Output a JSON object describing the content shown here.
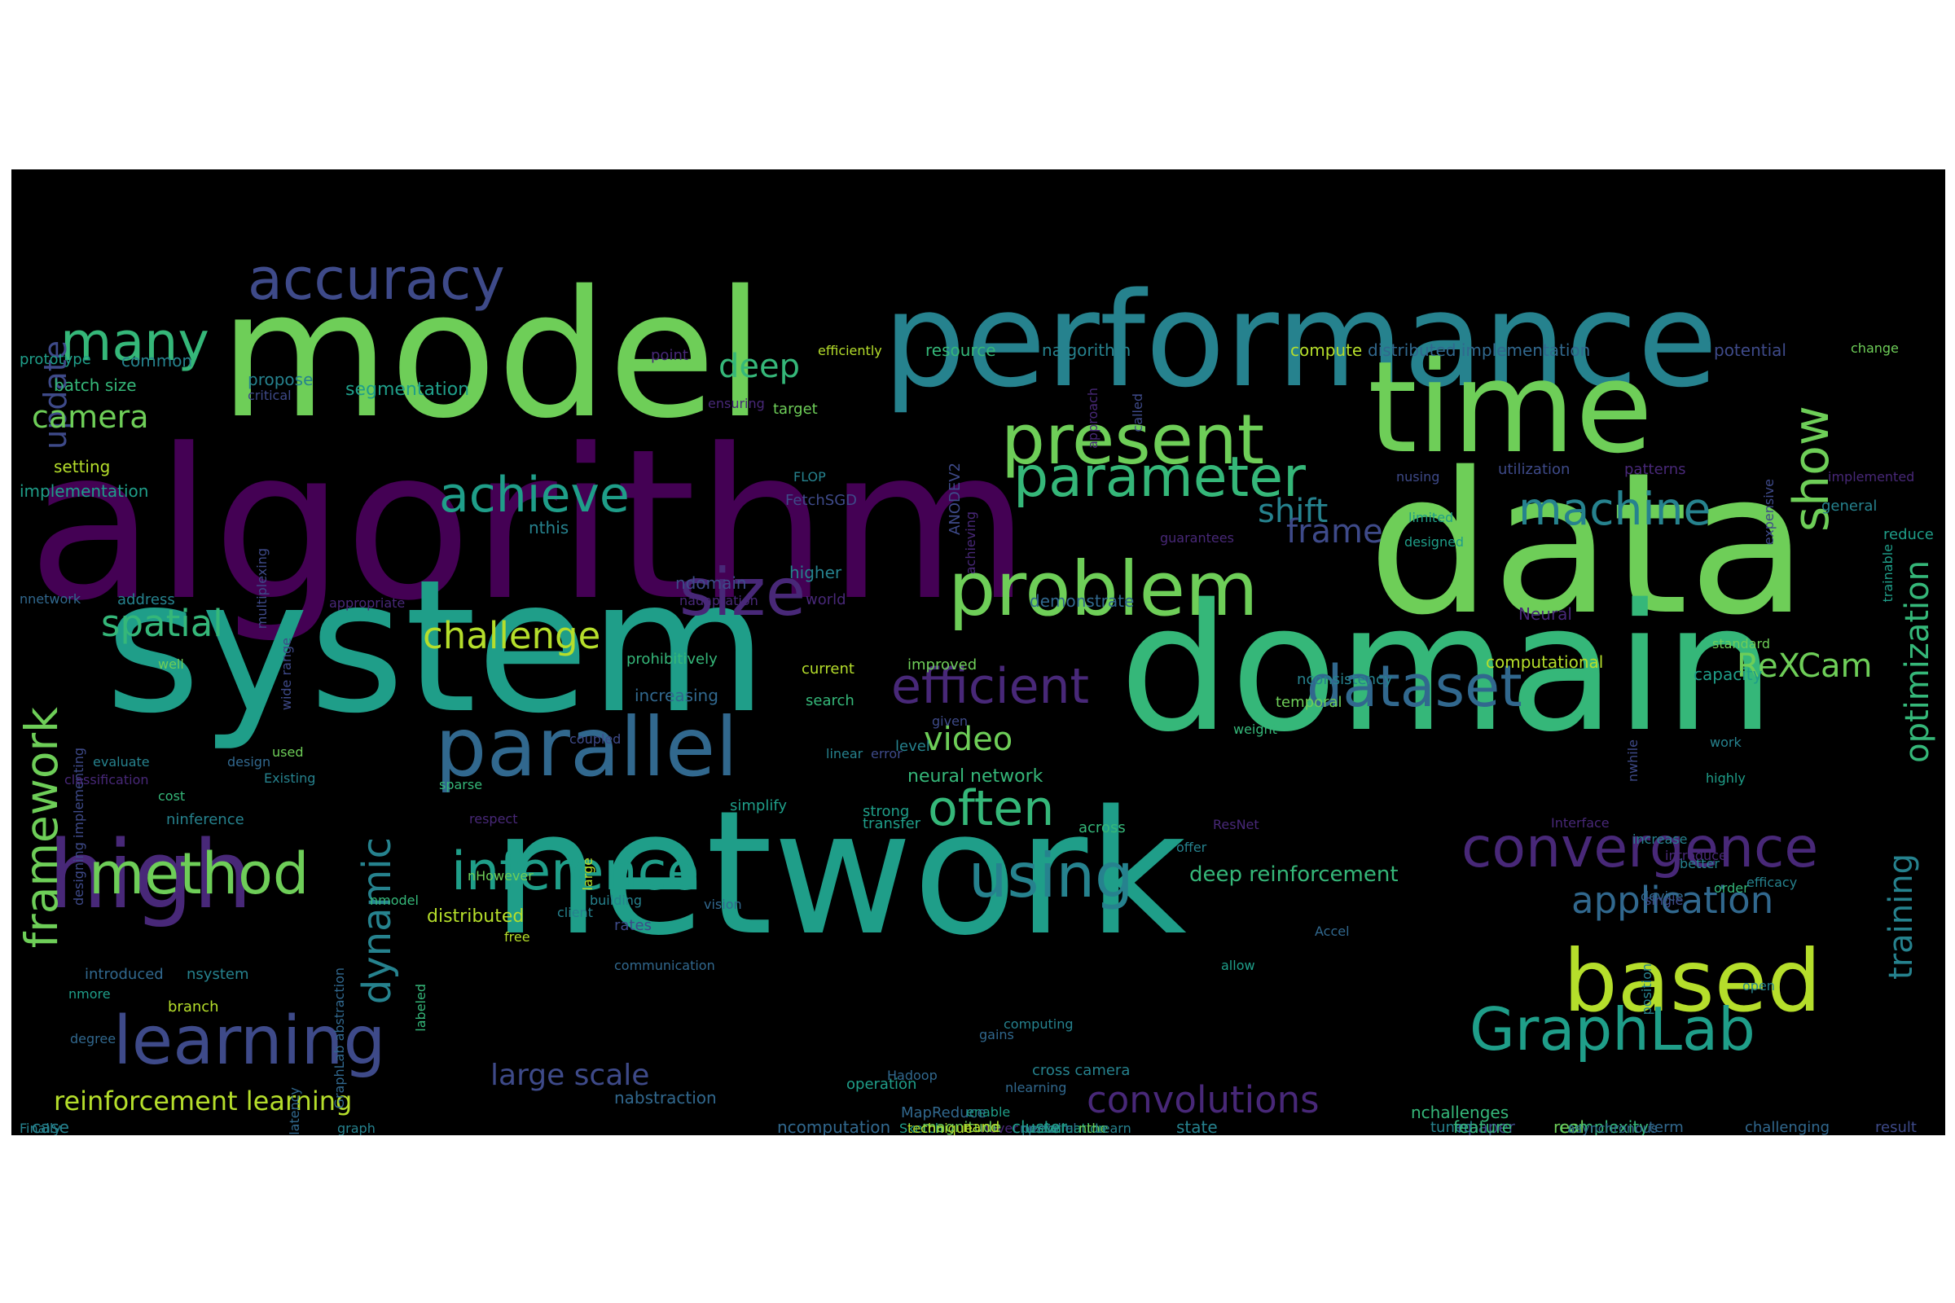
{
  "palette": [
    "#440154",
    "#482878",
    "#3e4a89",
    "#31688e",
    "#26828e",
    "#1f9e89",
    "#35b779",
    "#6ece58",
    "#b5de2b"
  ],
  "words": [
    {
      "text": "algorithm",
      "color": "#440154"
    },
    {
      "text": "model",
      "color": "#6ece58"
    },
    {
      "text": "system",
      "color": "#1f9e89"
    },
    {
      "text": "data",
      "color": "#6ece58"
    },
    {
      "text": "domain",
      "color": "#35b779"
    },
    {
      "text": "network",
      "color": "#1f9e89"
    },
    {
      "text": "performance",
      "color": "#26828e"
    },
    {
      "text": "time",
      "color": "#6ece58"
    },
    {
      "text": "parallel",
      "color": "#31688e"
    },
    {
      "text": "high",
      "color": "#482878"
    },
    {
      "text": "learning",
      "color": "#3e4a89"
    },
    {
      "text": "based",
      "color": "#b5de2b"
    },
    {
      "text": "problem",
      "color": "#6ece58"
    },
    {
      "text": "present",
      "color": "#6ece58"
    },
    {
      "text": "accuracy",
      "color": "#3e4a89"
    },
    {
      "text": "size",
      "color": "#482878"
    },
    {
      "text": "parameter",
      "color": "#35b779"
    },
    {
      "text": "GraphLab",
      "color": "#1f9e89"
    },
    {
      "text": "dataset",
      "color": "#31688e"
    },
    {
      "text": "using",
      "color": "#26828e"
    },
    {
      "text": "inference",
      "color": "#1f9e89"
    },
    {
      "text": "convergence",
      "color": "#482878"
    },
    {
      "text": "efficient",
      "color": "#482878"
    },
    {
      "text": "method",
      "color": "#6ece58"
    },
    {
      "text": "machine",
      "color": "#26828e"
    },
    {
      "text": "many",
      "color": "#35b779"
    },
    {
      "text": "achieve",
      "color": "#1f9e89"
    },
    {
      "text": "often",
      "color": "#35b779"
    },
    {
      "text": "application",
      "color": "#31688e"
    },
    {
      "text": "show",
      "color": "#6ece58"
    },
    {
      "text": "framework",
      "color": "#6ece58"
    },
    {
      "text": "dynamic",
      "color": "#26828e"
    },
    {
      "text": "convolutions",
      "color": "#482878"
    },
    {
      "text": "challenge",
      "color": "#b5de2b"
    },
    {
      "text": "spatial",
      "color": "#35b779"
    },
    {
      "text": "optimization",
      "color": "#35b779"
    },
    {
      "text": "training",
      "color": "#26828e"
    },
    {
      "text": "ReXCam",
      "color": "#6ece58"
    },
    {
      "text": "update",
      "color": "#3e4a89"
    },
    {
      "text": "camera",
      "color": "#6ece58"
    },
    {
      "text": "deep",
      "color": "#35b779"
    },
    {
      "text": "shift",
      "color": "#26828e"
    },
    {
      "text": "frame",
      "color": "#3e4a89"
    },
    {
      "text": "video",
      "color": "#6ece58"
    },
    {
      "text": "large scale",
      "color": "#3e4a89"
    },
    {
      "text": "reinforcement learning",
      "color": "#b5de2b"
    },
    {
      "text": "deep reinforcement",
      "color": "#35b779"
    },
    {
      "text": "distributed",
      "color": "#b5de2b"
    },
    {
      "text": "neural network",
      "color": "#35b779"
    },
    {
      "text": "batch size",
      "color": "#35b779"
    },
    {
      "text": "segmentation",
      "color": "#1f9e89"
    },
    {
      "text": "setting",
      "color": "#b5de2b"
    },
    {
      "text": "implementation",
      "color": "#1f9e89"
    },
    {
      "text": "common",
      "color": "#26828e"
    },
    {
      "text": "prototype",
      "color": "#1f9e89"
    },
    {
      "text": "propose",
      "color": "#26828e"
    },
    {
      "text": "critical",
      "color": "#3e4a89"
    },
    {
      "text": "point",
      "color": "#482878"
    },
    {
      "text": "efficiently",
      "color": "#b5de2b"
    },
    {
      "text": "resource",
      "color": "#35b779"
    },
    {
      "text": "nalgorithm",
      "color": "#26828e"
    },
    {
      "text": "compute",
      "color": "#b5de2b"
    },
    {
      "text": "distributed implementation",
      "color": "#31688e"
    },
    {
      "text": "potential",
      "color": "#3e4a89"
    },
    {
      "text": "change",
      "color": "#6ece58"
    },
    {
      "text": "target",
      "color": "#6ece58"
    },
    {
      "text": "ensuring",
      "color": "#482878"
    },
    {
      "text": "approach",
      "color": "#482878"
    },
    {
      "text": "called",
      "color": "#3e4a89"
    },
    {
      "text": "FLOP",
      "color": "#26828e"
    },
    {
      "text": "FetchSGD",
      "color": "#3e4a89"
    },
    {
      "text": "ANODEV2",
      "color": "#3e4a89"
    },
    {
      "text": "achieving",
      "color": "#482878"
    },
    {
      "text": "nusing",
      "color": "#3e4a89"
    },
    {
      "text": "utilization",
      "color": "#3e4a89"
    },
    {
      "text": "patterns",
      "color": "#482878"
    },
    {
      "text": "implemented",
      "color": "#482878"
    },
    {
      "text": "expensive",
      "color": "#3e4a89"
    },
    {
      "text": "general",
      "color": "#26828e"
    },
    {
      "text": "limited",
      "color": "#1f9e89"
    },
    {
      "text": "designed",
      "color": "#1f9e89"
    },
    {
      "text": "guarantees",
      "color": "#482878"
    },
    {
      "text": "reduce",
      "color": "#1f9e89"
    },
    {
      "text": "trainable",
      "color": "#1f9e89"
    },
    {
      "text": "higher",
      "color": "#26828e"
    },
    {
      "text": "multiplexing",
      "color": "#3e4a89"
    },
    {
      "text": "nthis",
      "color": "#26828e"
    },
    {
      "text": "ndomain",
      "color": "#3e4a89"
    },
    {
      "text": "nadaptation",
      "color": "#482878"
    },
    {
      "text": "world",
      "color": "#482878"
    },
    {
      "text": "appropriate",
      "color": "#482878"
    },
    {
      "text": "demonstrate",
      "color": "#31688e"
    },
    {
      "text": "Neural",
      "color": "#482878"
    },
    {
      "text": "standard",
      "color": "#6ece58"
    },
    {
      "text": "nnetwork",
      "color": "#31688e"
    },
    {
      "text": "address",
      "color": "#26828e"
    },
    {
      "text": "wide range",
      "color": "#3e4a89"
    },
    {
      "text": "well",
      "color": "#6ece58"
    },
    {
      "text": "prohibitively",
      "color": "#35b779"
    },
    {
      "text": "current",
      "color": "#b5de2b"
    },
    {
      "text": "improved",
      "color": "#6ece58"
    },
    {
      "text": "computational",
      "color": "#b5de2b"
    },
    {
      "text": "nconsistency",
      "color": "#26828e"
    },
    {
      "text": "capacity",
      "color": "#1f9e89"
    },
    {
      "text": "increasing",
      "color": "#31688e"
    },
    {
      "text": "search",
      "color": "#35b779"
    },
    {
      "text": "temporal",
      "color": "#6ece58"
    },
    {
      "text": "given",
      "color": "#3e4a89"
    },
    {
      "text": "weight",
      "color": "#35b779"
    },
    {
      "text": "coupled",
      "color": "#3e4a89"
    },
    {
      "text": "linear",
      "color": "#26828e"
    },
    {
      "text": "error",
      "color": "#3e4a89"
    },
    {
      "text": "level",
      "color": "#26828e"
    },
    {
      "text": "nwhile",
      "color": "#3e4a89"
    },
    {
      "text": "work",
      "color": "#26828e"
    },
    {
      "text": "highly",
      "color": "#1f9e89"
    },
    {
      "text": "evaluate",
      "color": "#26828e"
    },
    {
      "text": "design",
      "color": "#31688e"
    },
    {
      "text": "used",
      "color": "#6ece58"
    },
    {
      "text": "designing implementing",
      "color": "#3e4a89"
    },
    {
      "text": "classification",
      "color": "#482878"
    },
    {
      "text": "Existing",
      "color": "#26828e"
    },
    {
      "text": "cost",
      "color": "#35b779"
    },
    {
      "text": "sparse",
      "color": "#35b779"
    },
    {
      "text": "simplify",
      "color": "#1f9e89"
    },
    {
      "text": "strong",
      "color": "#1f9e89"
    },
    {
      "text": "ninference",
      "color": "#26828e"
    },
    {
      "text": "respect",
      "color": "#482878"
    },
    {
      "text": "transfer",
      "color": "#1f9e89"
    },
    {
      "text": "across",
      "color": "#35b779"
    },
    {
      "text": "ResNet",
      "color": "#482878"
    },
    {
      "text": "offer",
      "color": "#26828e"
    },
    {
      "text": "Interface",
      "color": "#482878"
    },
    {
      "text": "increase",
      "color": "#26828e"
    },
    {
      "text": "better",
      "color": "#26828e"
    },
    {
      "text": "introduce",
      "color": "#482878"
    },
    {
      "text": "order",
      "color": "#35b779"
    },
    {
      "text": "efficacy",
      "color": "#26828e"
    },
    {
      "text": "nHowever",
      "color": "#6ece58"
    },
    {
      "text": "large",
      "color": "#b5de2b"
    },
    {
      "text": "building",
      "color": "#26828e"
    },
    {
      "text": "vision",
      "color": "#31688e"
    },
    {
      "text": "client",
      "color": "#26828e"
    },
    {
      "text": "device",
      "color": "#31688e"
    },
    {
      "text": "rates",
      "color": "#3e4a89"
    },
    {
      "text": "nmodel",
      "color": "#35b779"
    },
    {
      "text": "free",
      "color": "#b5de2b"
    },
    {
      "text": "Accel",
      "color": "#31688e"
    },
    {
      "text": "communication",
      "color": "#31688e"
    },
    {
      "text": "single",
      "color": "#3e4a89"
    },
    {
      "text": "allow",
      "color": "#1f9e89"
    },
    {
      "text": "introduced",
      "color": "#31688e"
    },
    {
      "text": "nsystem",
      "color": "#26828e"
    },
    {
      "text": "nmore",
      "color": "#1f9e89"
    },
    {
      "text": "GraphLab abstraction",
      "color": "#31688e"
    },
    {
      "text": "labeled",
      "color": "#35b779"
    },
    {
      "text": "branch",
      "color": "#b5de2b"
    },
    {
      "text": "position",
      "color": "#26828e"
    },
    {
      "text": "open",
      "color": "#26828e"
    },
    {
      "text": "degree",
      "color": "#31688e"
    },
    {
      "text": "computing",
      "color": "#26828e"
    },
    {
      "text": "gains",
      "color": "#31688e"
    },
    {
      "text": "cross camera",
      "color": "#26828e"
    },
    {
      "text": "Hadoop",
      "color": "#31688e"
    },
    {
      "text": "nlearning",
      "color": "#31688e"
    },
    {
      "text": "operation",
      "color": "#1f9e89"
    },
    {
      "text": "nabstraction",
      "color": "#31688e"
    },
    {
      "text": "MapReduce",
      "color": "#31688e"
    },
    {
      "text": "enable",
      "color": "#1f9e89"
    },
    {
      "text": "nchallenges",
      "color": "#35b779"
    },
    {
      "text": "complexity",
      "color": "#35b779"
    },
    {
      "text": "real",
      "color": "#6ece58"
    },
    {
      "text": "Sketch",
      "color": "#1f9e89"
    },
    {
      "text": "Finally",
      "color": "#26828e"
    },
    {
      "text": "nover",
      "color": "#482878"
    },
    {
      "text": "nparallel",
      "color": "#31688e"
    },
    {
      "text": "npaper",
      "color": "#3e4a89"
    },
    {
      "text": "tuned",
      "color": "#26828e"
    },
    {
      "text": "latency",
      "color": "#31688e"
    },
    {
      "text": "graph",
      "color": "#26828e"
    },
    {
      "text": "evaluation",
      "color": "#1f9e89"
    },
    {
      "text": "perform",
      "color": "#26828e"
    },
    {
      "text": "nthe",
      "color": "#6ece58"
    },
    {
      "text": "state",
      "color": "#26828e"
    },
    {
      "text": "asynchronous",
      "color": "#31688e"
    },
    {
      "text": "Learn",
      "color": "#26828e"
    },
    {
      "text": "case",
      "color": "#26828e"
    },
    {
      "text": "ncomputation",
      "color": "#31688e"
    },
    {
      "text": "magnitude",
      "color": "#6ece58"
    },
    {
      "text": "cluster",
      "color": "#1f9e89"
    },
    {
      "text": "technique",
      "color": "#b5de2b"
    },
    {
      "text": "nand",
      "color": "#b5de2b"
    },
    {
      "text": "feature",
      "color": "#35b779"
    },
    {
      "text": "term",
      "color": "#31688e"
    },
    {
      "text": "challenging",
      "color": "#31688e"
    },
    {
      "text": "result",
      "color": "#3e4a89"
    },
    {
      "text": "formulation",
      "color": "#35b779"
    },
    {
      "text": "efficiency",
      "color": "#26828e"
    },
    {
      "text": "performing",
      "color": "#b5de2b"
    }
  ]
}
